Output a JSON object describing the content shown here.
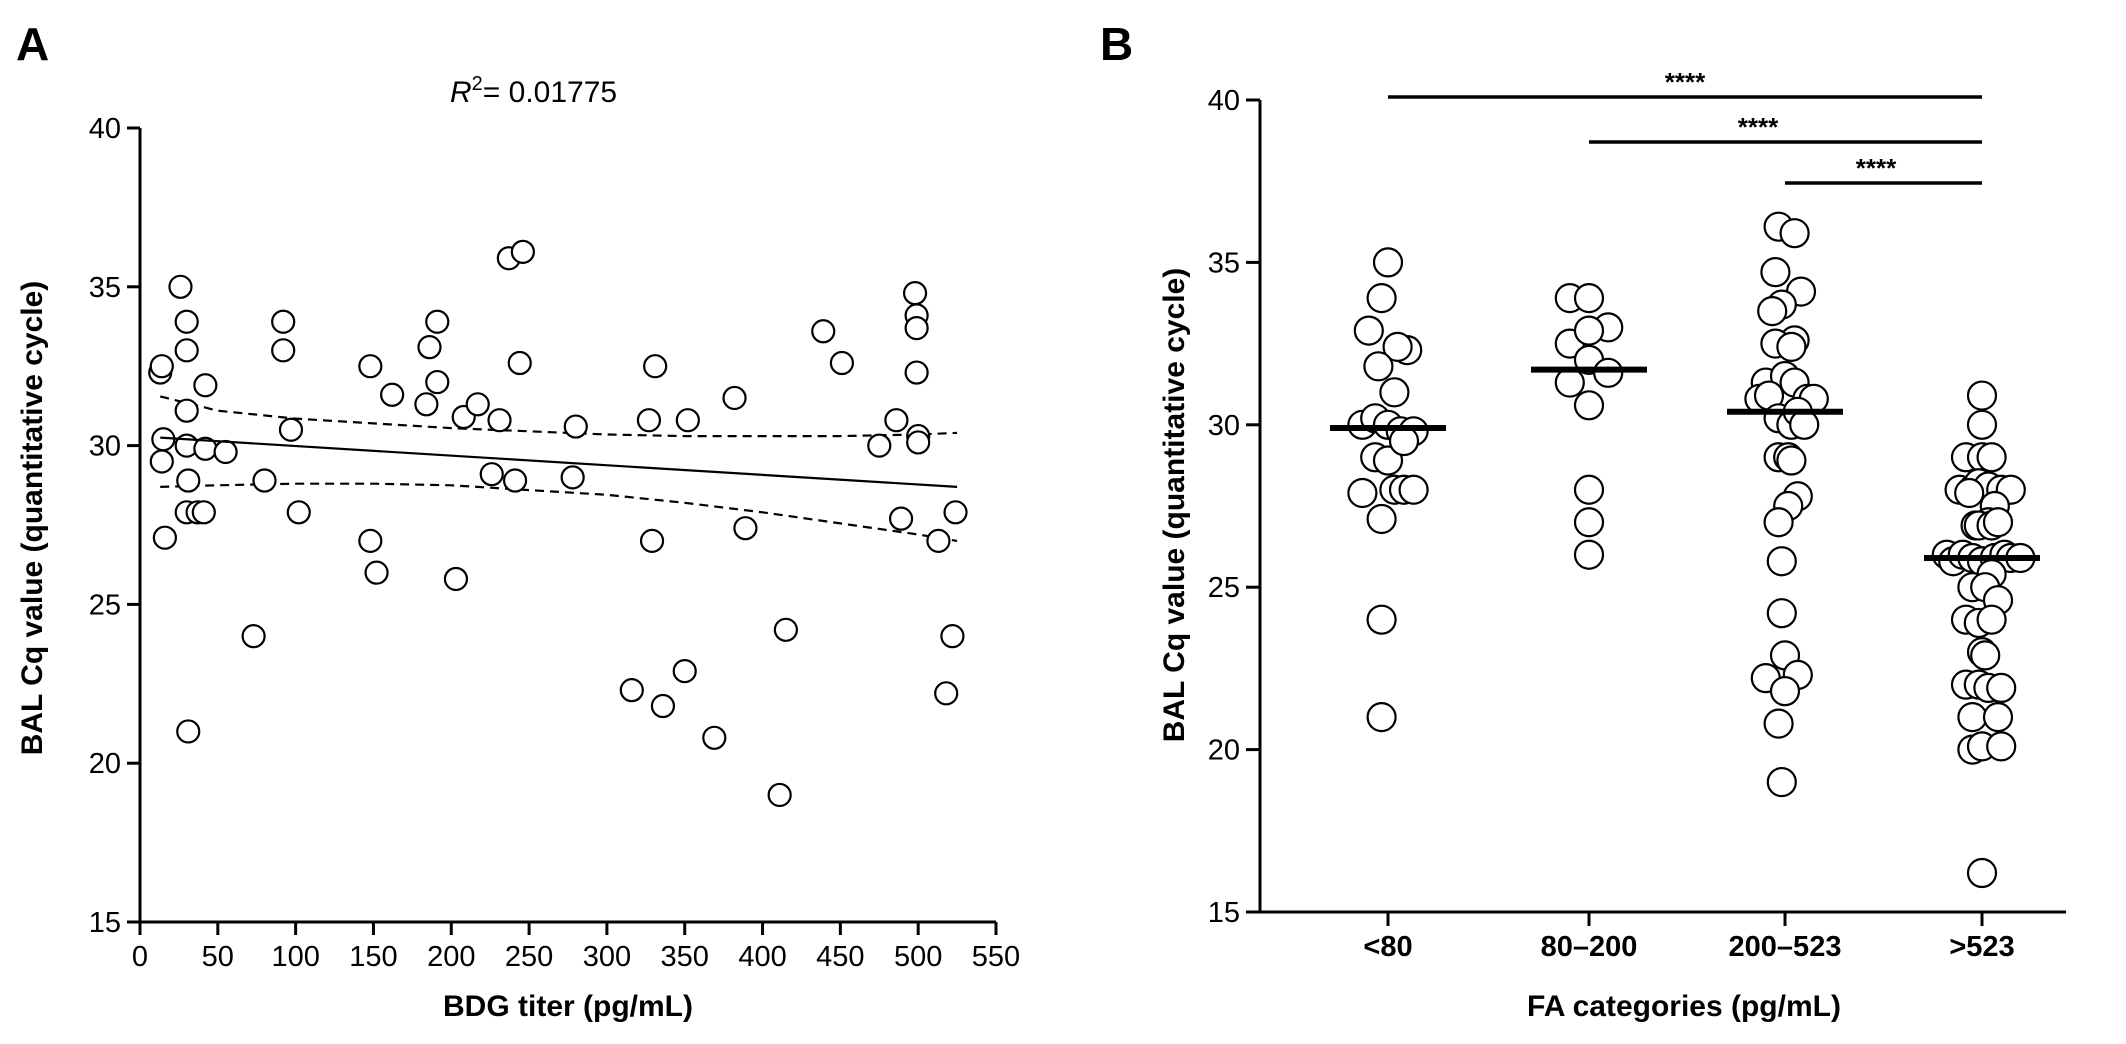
{
  "chart_data": [
    {
      "panel": "A",
      "type": "scatter",
      "title": "",
      "r2_prefix": "R",
      "r2_sup": "2",
      "r2_value": "= 0.01775",
      "xlabel": "BDG titer (pg/mL)",
      "ylabel": "BAL Cq value (quantitative cycle)",
      "xlim": [
        0,
        550
      ],
      "ylim": [
        15,
        40
      ],
      "xticks": [
        0,
        50,
        100,
        150,
        200,
        250,
        300,
        350,
        400,
        450,
        500,
        550
      ],
      "yticks": [
        15,
        20,
        25,
        30,
        35,
        40
      ],
      "grid": false,
      "points": [
        [
          13,
          32.3
        ],
        [
          14,
          32.5
        ],
        [
          15,
          30.2
        ],
        [
          14,
          29.5
        ],
        [
          16,
          27.1
        ],
        [
          26,
          35.0
        ],
        [
          30,
          33.9
        ],
        [
          30,
          33.0
        ],
        [
          30,
          31.1
        ],
        [
          30,
          30.0
        ],
        [
          31,
          28.9
        ],
        [
          30,
          27.9
        ],
        [
          31,
          21.0
        ],
        [
          37,
          27.9
        ],
        [
          41,
          27.9
        ],
        [
          42,
          31.9
        ],
        [
          42,
          29.9
        ],
        [
          55,
          29.8
        ],
        [
          73,
          24.0
        ],
        [
          80,
          28.9
        ],
        [
          92,
          33.9
        ],
        [
          92,
          33.0
        ],
        [
          97,
          30.5
        ],
        [
          102,
          27.9
        ],
        [
          148,
          32.5
        ],
        [
          148,
          27.0
        ],
        [
          152,
          26.0
        ],
        [
          162,
          31.6
        ],
        [
          184,
          31.3
        ],
        [
          186,
          33.1
        ],
        [
          191,
          33.9
        ],
        [
          191,
          32.0
        ],
        [
          203,
          25.8
        ],
        [
          208,
          30.9
        ],
        [
          217,
          31.3
        ],
        [
          226,
          29.1
        ],
        [
          231,
          30.8
        ],
        [
          237,
          35.9
        ],
        [
          241,
          28.9
        ],
        [
          244,
          32.6
        ],
        [
          246,
          36.1
        ],
        [
          278,
          29.0
        ],
        [
          280,
          30.6
        ],
        [
          316,
          22.3
        ],
        [
          327,
          30.8
        ],
        [
          329,
          27.0
        ],
        [
          331,
          32.5
        ],
        [
          336,
          21.8
        ],
        [
          350,
          22.9
        ],
        [
          352,
          30.8
        ],
        [
          369,
          20.8
        ],
        [
          382,
          31.5
        ],
        [
          389,
          27.4
        ],
        [
          411,
          19.0
        ],
        [
          415,
          24.2
        ],
        [
          439,
          33.6
        ],
        [
          451,
          32.6
        ],
        [
          475,
          30.0
        ],
        [
          486,
          30.8
        ],
        [
          489,
          27.7
        ],
        [
          498,
          34.8
        ],
        [
          499,
          34.1
        ],
        [
          499,
          33.7
        ],
        [
          499,
          32.3
        ],
        [
          500,
          30.3
        ],
        [
          500,
          30.1
        ],
        [
          513,
          27.0
        ],
        [
          518,
          22.2
        ],
        [
          522,
          24.0
        ],
        [
          524,
          27.9
        ]
      ],
      "fit_line": {
        "x": [
          13,
          525
        ],
        "y": [
          30.25,
          28.7
        ]
      },
      "ci_upper": {
        "x": [
          13,
          50,
          100,
          150,
          200,
          250,
          300,
          350,
          400,
          450,
          500,
          525
        ],
        "y": [
          31.55,
          31.1,
          30.85,
          30.7,
          30.55,
          30.45,
          30.35,
          30.3,
          30.3,
          30.3,
          30.35,
          30.4
        ]
      },
      "ci_lower": {
        "x": [
          13,
          50,
          100,
          150,
          200,
          250,
          300,
          350,
          400,
          450,
          500,
          525
        ],
        "y": [
          28.7,
          28.75,
          28.8,
          28.8,
          28.75,
          28.6,
          28.45,
          28.2,
          27.9,
          27.55,
          27.2,
          27.0
        ]
      }
    },
    {
      "panel": "B",
      "type": "scatter",
      "title": "",
      "xlabel": "FA categories (pg/mL)",
      "ylabel": "BAL Cq value (quantitative cycle)",
      "ylim": [
        15,
        40
      ],
      "yticks": [
        15,
        20,
        25,
        30,
        35,
        40
      ],
      "categories": [
        "<80",
        "80–200",
        "200–523",
        ">523"
      ],
      "grid": false,
      "groups": [
        {
          "category": "<80",
          "median": 29.9,
          "points": [
            [
              0,
              35.0
            ],
            [
              -0.1,
              33.9
            ],
            [
              0.3,
              32.3
            ],
            [
              -0.3,
              32.9
            ],
            [
              0.15,
              32.4
            ],
            [
              -0.15,
              31.8
            ],
            [
              0.1,
              31.0
            ],
            [
              -0.4,
              30.0
            ],
            [
              -0.2,
              30.2
            ],
            [
              0,
              30.0
            ],
            [
              0.2,
              29.8
            ],
            [
              0.4,
              29.8
            ],
            [
              -0.2,
              29.0
            ],
            [
              0,
              28.9
            ],
            [
              0.25,
              29.5
            ],
            [
              -0.4,
              27.9
            ],
            [
              0.1,
              28.0
            ],
            [
              0.25,
              28.0
            ],
            [
              0.4,
              28.0
            ],
            [
              -0.1,
              27.1
            ],
            [
              -0.1,
              24.0
            ],
            [
              -0.1,
              21.0
            ]
          ]
        },
        {
          "category": "80–200",
          "median": 31.7,
          "points": [
            [
              -0.3,
              33.9
            ],
            [
              0,
              33.9
            ],
            [
              0.3,
              33.0
            ],
            [
              -0.3,
              32.5
            ],
            [
              0,
              32.9
            ],
            [
              0,
              32.0
            ],
            [
              -0.3,
              31.3
            ],
            [
              0.3,
              31.6
            ],
            [
              0,
              30.6
            ],
            [
              0,
              28.0
            ],
            [
              0,
              27.0
            ],
            [
              0,
              26.0
            ]
          ]
        },
        {
          "category": "200–523",
          "median": 30.4,
          "points": [
            [
              -0.1,
              36.1
            ],
            [
              0.15,
              35.9
            ],
            [
              -0.15,
              34.7
            ],
            [
              0.25,
              34.1
            ],
            [
              -0.05,
              33.7
            ],
            [
              -0.2,
              33.5
            ],
            [
              0.15,
              32.6
            ],
            [
              -0.15,
              32.5
            ],
            [
              0.1,
              32.4
            ],
            [
              -0.3,
              31.3
            ],
            [
              0,
              31.5
            ],
            [
              0.15,
              31.3
            ],
            [
              -0.4,
              30.8
            ],
            [
              -0.25,
              30.9
            ],
            [
              0.35,
              30.8
            ],
            [
              0.45,
              30.8
            ],
            [
              -0.1,
              30.2
            ],
            [
              0.1,
              30.0
            ],
            [
              0.2,
              30.4
            ],
            [
              0.3,
              30.0
            ],
            [
              -0.1,
              29.0
            ],
            [
              0.05,
              29.0
            ],
            [
              0.1,
              28.9
            ],
            [
              0.2,
              27.8
            ],
            [
              0.05,
              27.5
            ],
            [
              -0.1,
              27.0
            ],
            [
              -0.05,
              25.8
            ],
            [
              -0.05,
              24.2
            ],
            [
              0,
              22.9
            ],
            [
              -0.3,
              22.2
            ],
            [
              0.2,
              22.3
            ],
            [
              0,
              21.8
            ],
            [
              -0.1,
              20.8
            ],
            [
              -0.05,
              19.0
            ]
          ]
        },
        {
          "category": ">523",
          "median": 25.9,
          "points": [
            [
              0,
              30.9
            ],
            [
              0,
              30.0
            ],
            [
              -0.25,
              29.0
            ],
            [
              0,
              29.0
            ],
            [
              0.15,
              29.0
            ],
            [
              -0.35,
              28.0
            ],
            [
              -0.15,
              28.0
            ],
            [
              -0.05,
              28.2
            ],
            [
              0.1,
              28.1
            ],
            [
              0.3,
              28.0
            ],
            [
              0.45,
              28.0
            ],
            [
              -0.2,
              27.9
            ],
            [
              0.2,
              27.5
            ],
            [
              0.1,
              27.0
            ],
            [
              -0.1,
              26.9
            ],
            [
              -0.05,
              26.9
            ],
            [
              0.15,
              26.9
            ],
            [
              0.25,
              27.0
            ],
            [
              -0.55,
              26.0
            ],
            [
              -0.45,
              25.8
            ],
            [
              -0.3,
              26.0
            ],
            [
              -0.15,
              25.9
            ],
            [
              0,
              25.8
            ],
            [
              0.2,
              25.9
            ],
            [
              0.35,
              26.0
            ],
            [
              0.45,
              25.9
            ],
            [
              0.6,
              25.9
            ],
            [
              0.15,
              25.4
            ],
            [
              -0.15,
              25.0
            ],
            [
              0.05,
              25.0
            ],
            [
              0.25,
              24.6
            ],
            [
              -0.25,
              24.0
            ],
            [
              -0.05,
              23.9
            ],
            [
              0.15,
              24.0
            ],
            [
              0,
              23.0
            ],
            [
              0.05,
              22.9
            ],
            [
              -0.25,
              22.0
            ],
            [
              -0.05,
              22.0
            ],
            [
              0.1,
              21.9
            ],
            [
              0.3,
              21.9
            ],
            [
              -0.15,
              21.0
            ],
            [
              0.25,
              21.0
            ],
            [
              -0.15,
              20.0
            ],
            [
              0,
              20.1
            ],
            [
              0.3,
              20.1
            ],
            [
              0,
              16.2
            ]
          ]
        }
      ],
      "significance": [
        {
          "from": "<80",
          "to": ">523",
          "label": "****"
        },
        {
          "from": "80–200",
          "to": ">523",
          "label": "****"
        },
        {
          "from": "200–523",
          "to": ">523",
          "label": "****"
        }
      ]
    }
  ]
}
